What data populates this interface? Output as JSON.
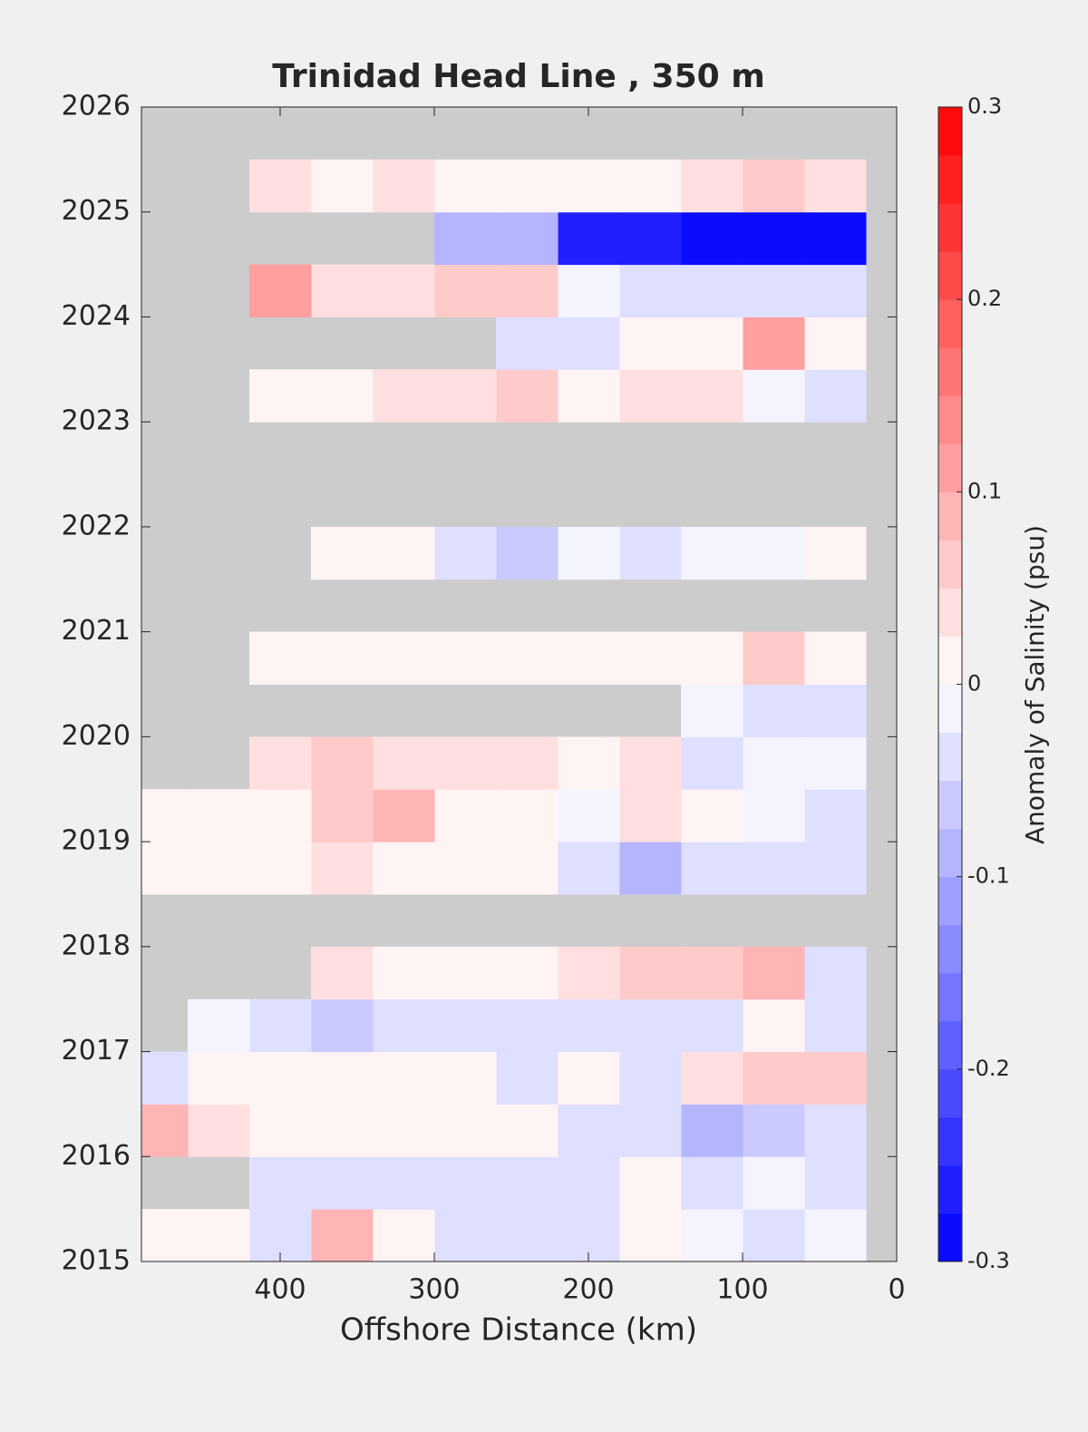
{
  "chart_data": {
    "type": "contour",
    "title": "Trinidad Head Line , 350 m",
    "xlabel": "Offshore Distance (km)",
    "colorbar_label": "Anomaly of Salinity (psu)",
    "xlim": [
      490,
      0
    ],
    "xticks": [
      400,
      300,
      200,
      100,
      0
    ],
    "ylim": [
      2015,
      2026
    ],
    "yticks": [
      2015,
      2016,
      2017,
      2018,
      2019,
      2020,
      2021,
      2022,
      2023,
      2024,
      2025,
      2026
    ],
    "clim": [
      -0.3,
      0.3
    ],
    "cticks": [
      -0.3,
      -0.2,
      -0.1,
      0,
      0.1,
      0.2,
      0.3
    ],
    "levels": 24,
    "colormap": [
      "#0000ff",
      "#ffffff",
      "#ff0000"
    ],
    "missing_color": "#cccccc",
    "x": [
      40,
      80,
      120,
      160,
      200,
      240,
      280,
      320,
      360,
      400,
      440,
      480
    ],
    "y": [
      2015.25,
      2015.75,
      2016.25,
      2016.75,
      2017.25,
      2017.75,
      2018.25,
      2018.75,
      2019.25,
      2019.75,
      2020.25,
      2020.75,
      2021.25,
      2021.75,
      2022.25,
      2022.75,
      2023.25,
      2023.75,
      2024.25,
      2024.75,
      2025.25,
      2025.75
    ],
    "z": [
      [
        -0.02,
        -0.05,
        -0.02,
        0,
        -0.03,
        -0.04,
        -0.05,
        0.02,
        0.08,
        -0.04,
        0,
        0
      ],
      [
        -0.04,
        -0.02,
        -0.05,
        0,
        -0.03,
        -0.05,
        -0.04,
        -0.05,
        -0.04,
        -0.03,
        null,
        null
      ],
      [
        -0.03,
        -0.06,
        -0.08,
        -0.03,
        -0.03,
        0,
        0,
        0,
        0,
        0,
        0.04,
        0.08
      ],
      [
        0.05,
        0.07,
        0.03,
        -0.04,
        0,
        -0.05,
        0,
        0,
        0,
        0,
        0,
        -0.03
      ],
      [
        -0.03,
        0,
        -0.04,
        -0.03,
        -0.03,
        -0.04,
        -0.05,
        -0.05,
        -0.06,
        -0.04,
        -0.02,
        null
      ],
      [
        -0.05,
        0.08,
        0.05,
        0.05,
        0.03,
        0,
        0,
        0.02,
        0.03,
        null,
        null,
        null
      ],
      [
        null,
        null,
        null,
        null,
        null,
        null,
        null,
        null,
        null,
        null,
        null,
        null
      ],
      [
        -0.03,
        -0.03,
        -0.05,
        -0.08,
        -0.03,
        0,
        0.02,
        0,
        0.03,
        0.02,
        0,
        0
      ],
      [
        -0.03,
        -0.02,
        0,
        0.03,
        -0.02,
        0.02,
        0,
        0.08,
        0.05,
        0,
        0,
        0
      ],
      [
        -0.02,
        -0.02,
        -0.03,
        0.03,
        0,
        0.04,
        0.04,
        0.03,
        0.05,
        0.04,
        null,
        null
      ],
      [
        -0.05,
        -0.03,
        -0.02,
        null,
        null,
        null,
        null,
        null,
        null,
        null,
        null,
        null
      ],
      [
        0.02,
        0.05,
        0.02,
        0,
        0,
        0,
        0,
        0,
        0,
        0,
        null,
        null
      ],
      [
        null,
        null,
        null,
        null,
        null,
        null,
        null,
        null,
        null,
        null,
        null,
        null
      ],
      [
        0,
        -0.02,
        -0.02,
        -0.03,
        -0.02,
        -0.06,
        -0.03,
        0,
        0,
        null,
        null,
        null
      ],
      [
        null,
        null,
        null,
        null,
        null,
        null,
        null,
        null,
        null,
        null,
        null,
        null
      ],
      [
        null,
        null,
        null,
        null,
        null,
        null,
        null,
        null,
        null,
        null,
        null,
        null
      ],
      [
        -0.03,
        -0.02,
        0.03,
        0.04,
        0.02,
        0.05,
        0.04,
        0.03,
        0.02,
        0.02,
        null,
        null
      ],
      [
        0,
        0.12,
        0,
        0.02,
        -0.04,
        -0.03,
        null,
        null,
        null,
        null,
        null,
        null
      ],
      [
        -0.05,
        -0.05,
        -0.03,
        -0.03,
        -0.02,
        0.05,
        0.07,
        0.03,
        0.03,
        0.1,
        null,
        null
      ],
      [
        -0.3,
        -0.3,
        -0.28,
        -0.25,
        -0.25,
        -0.1,
        -0.08,
        null,
        null,
        null,
        null,
        null
      ],
      [
        0.03,
        0.05,
        0.03,
        0,
        0,
        0.02,
        0.02,
        0.03,
        0.02,
        0.03,
        null,
        null
      ],
      [
        null,
        null,
        null,
        null,
        null,
        null,
        null,
        null,
        null,
        null,
        null,
        null
      ]
    ]
  }
}
